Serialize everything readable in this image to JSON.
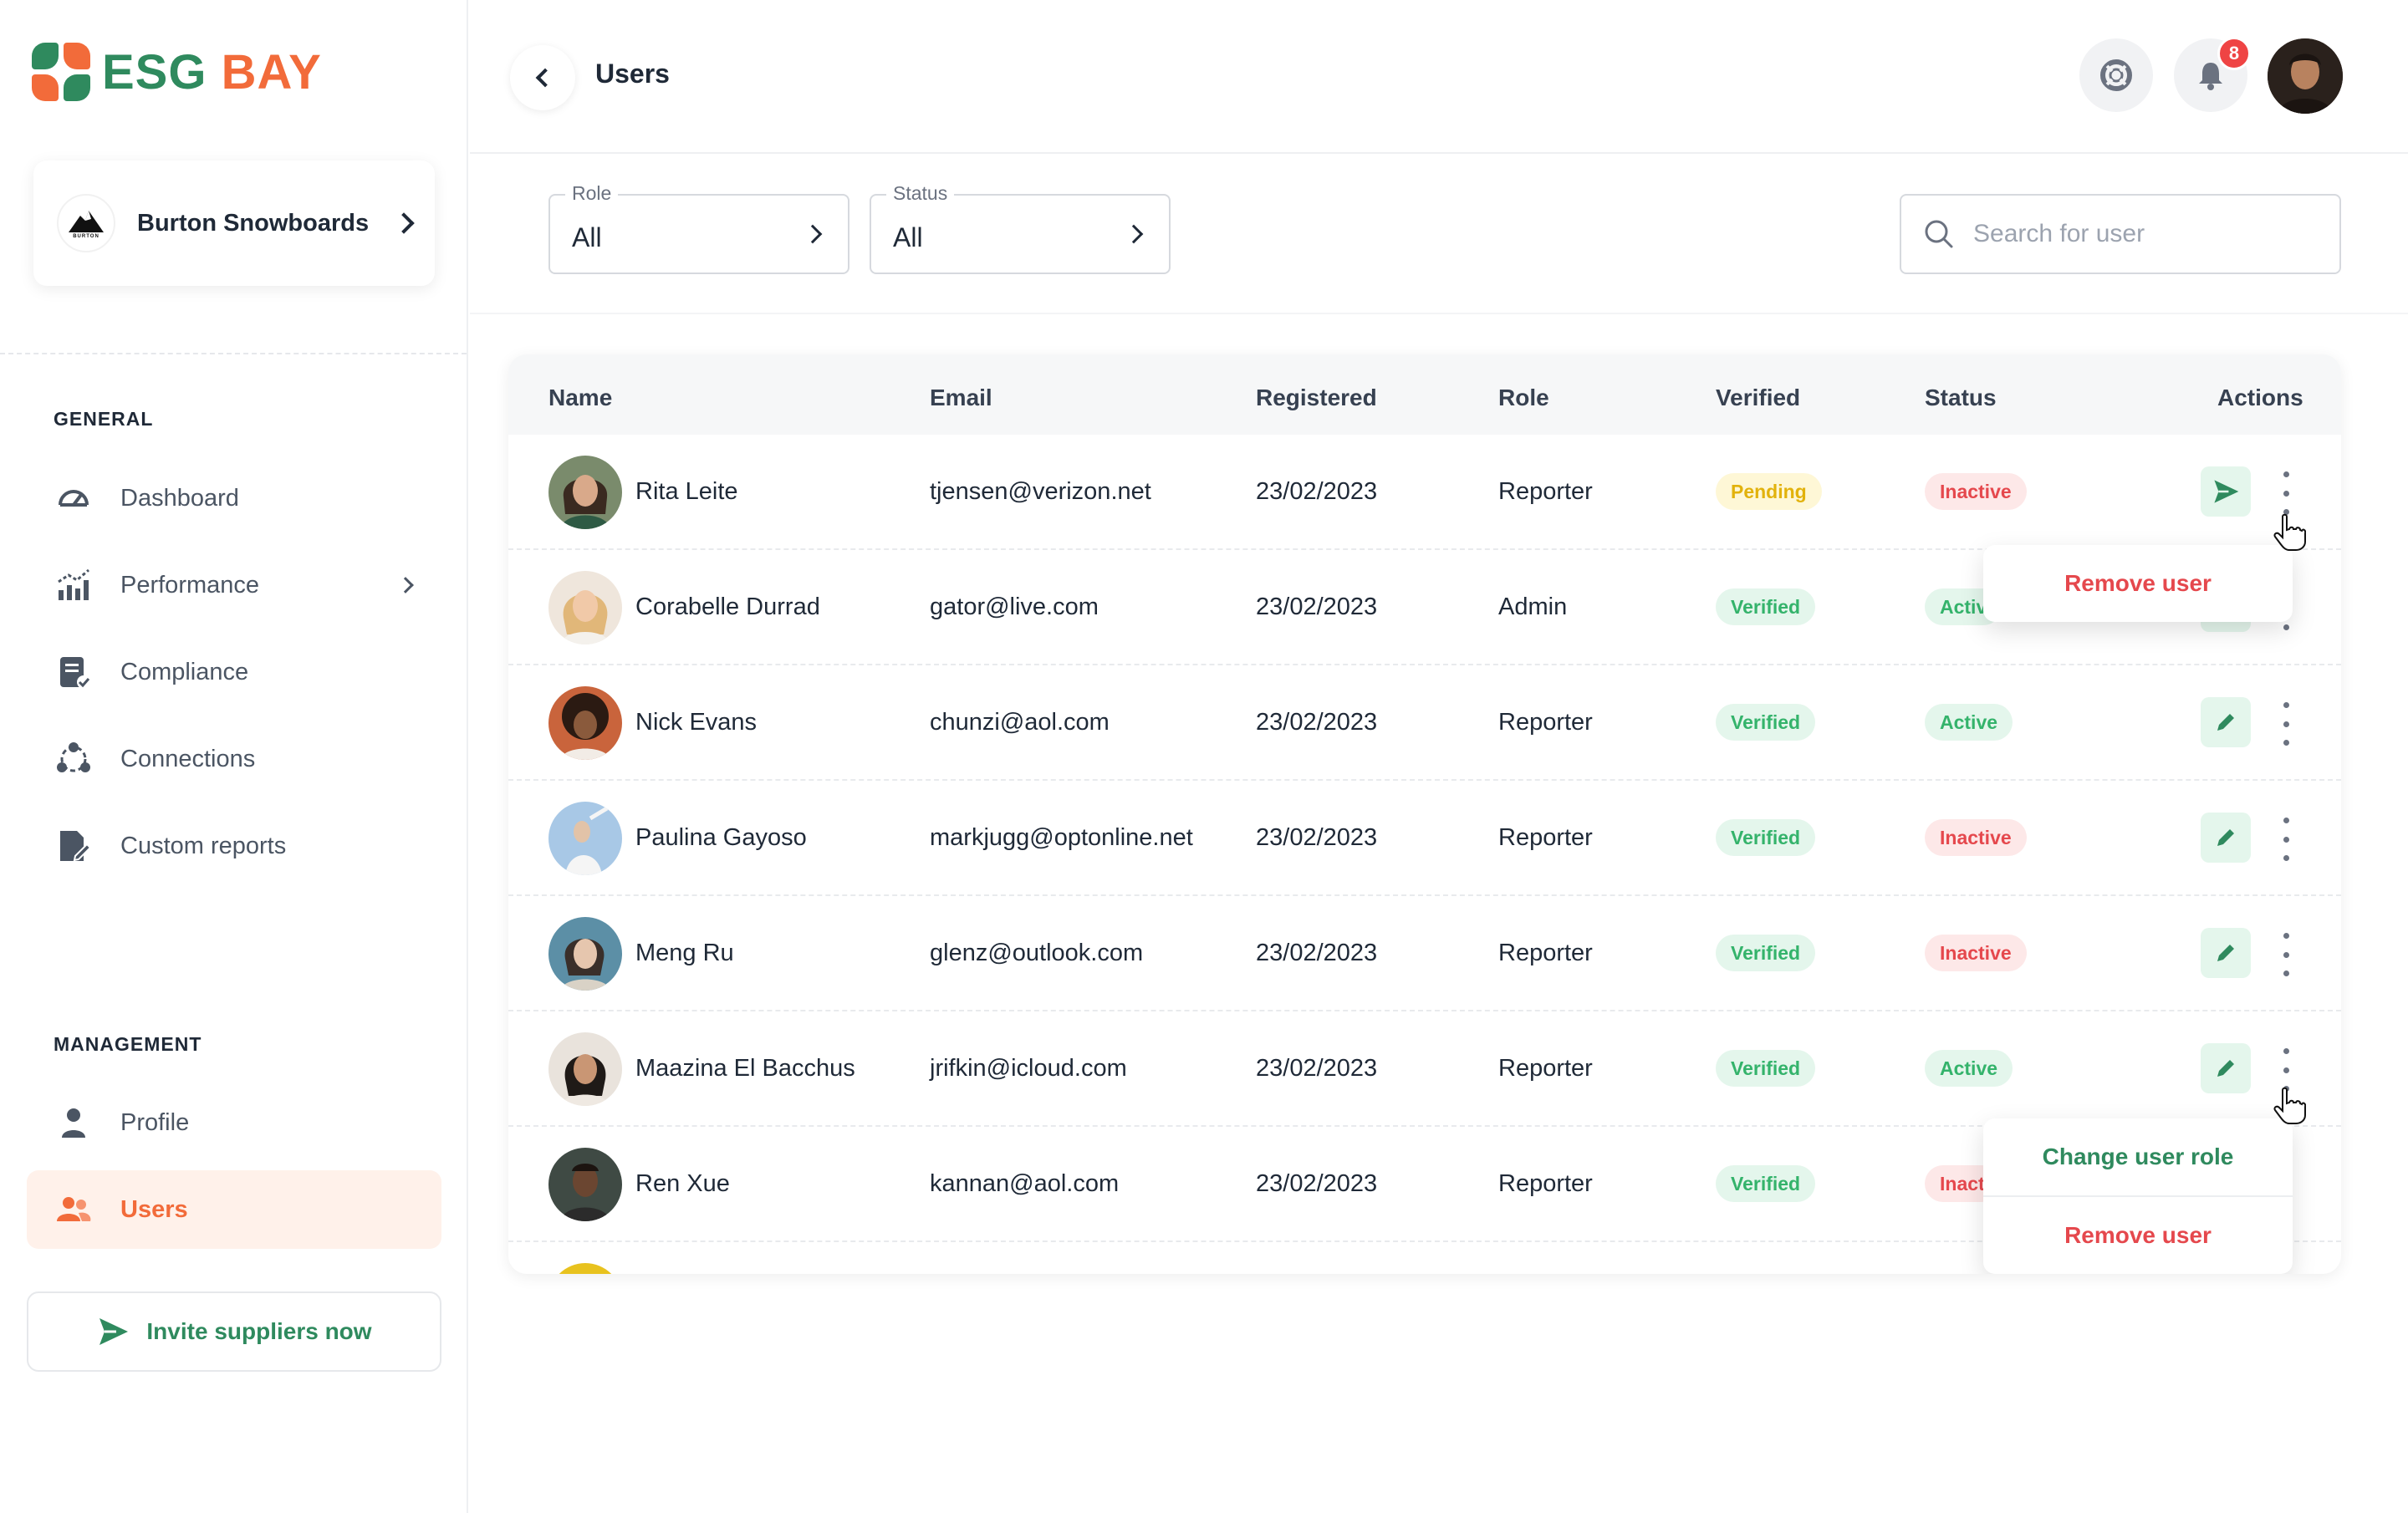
{
  "brand": {
    "name_part1": "ESG",
    "name_part2": "BAY"
  },
  "organization": {
    "name": "Burton Snowboards",
    "logo_text": "BURTON"
  },
  "sidebar": {
    "general_title": "GENERAL",
    "general_items": [
      {
        "label": "Dashboard",
        "icon": "gauge-icon"
      },
      {
        "label": "Performance",
        "icon": "bar-chart-icon"
      },
      {
        "label": "Compliance",
        "icon": "document-check-icon"
      },
      {
        "label": "Connections",
        "icon": "network-icon"
      },
      {
        "label": "Custom reports",
        "icon": "file-edit-icon"
      }
    ],
    "management_title": "MANAGEMENT",
    "management_items": [
      {
        "label": "Profile",
        "icon": "person-icon"
      },
      {
        "label": "Users",
        "icon": "users-icon",
        "active": true
      }
    ],
    "invite_label": "Invite suppliers now"
  },
  "header": {
    "title": "Users",
    "notification_count": "8"
  },
  "filters": {
    "role": {
      "label": "Role",
      "value": "All"
    },
    "status": {
      "label": "Status",
      "value": "All"
    },
    "search_placeholder": "Search for user"
  },
  "table": {
    "columns": [
      "Name",
      "Email",
      "Registered",
      "Role",
      "Verified",
      "Status",
      "Actions"
    ],
    "rows": [
      {
        "name": "Rita Leite",
        "email": "tjensen@verizon.net",
        "registered": "23/02/2023",
        "role": "Reporter",
        "verified": "Pending",
        "status": "Inactive",
        "action": "send-icon"
      },
      {
        "name": "Corabelle Durrad",
        "email": "gator@live.com",
        "registered": "23/02/2023",
        "role": "Admin",
        "verified": "Verified",
        "status": "Activ",
        "action": "edit-icon"
      },
      {
        "name": "Nick Evans",
        "email": "chunzi@aol.com",
        "registered": "23/02/2023",
        "role": "Reporter",
        "verified": "Verified",
        "status": "Active",
        "action": "edit-icon"
      },
      {
        "name": "Paulina Gayoso",
        "email": "markjugg@optonline.net",
        "registered": "23/02/2023",
        "role": "Reporter",
        "verified": "Verified",
        "status": "Inactive",
        "action": "edit-icon"
      },
      {
        "name": "Meng Ru",
        "email": "glenz@outlook.com",
        "registered": "23/02/2023",
        "role": "Reporter",
        "verified": "Verified",
        "status": "Inactive",
        "action": "edit-icon"
      },
      {
        "name": "Maazina El Bacchus",
        "email": "jrifkin@icloud.com",
        "registered": "23/02/2023",
        "role": "Reporter",
        "verified": "Verified",
        "status": "Active",
        "action": "edit-icon"
      },
      {
        "name": "Ren Xue",
        "email": "kannan@aol.com",
        "registered": "23/02/2023",
        "role": "Reporter",
        "verified": "Verified",
        "status": "Inact",
        "action": "edit-icon"
      }
    ]
  },
  "menus": {
    "menu1": {
      "remove": "Remove user"
    },
    "menu2": {
      "change_role": "Change user role",
      "remove": "Remove user"
    }
  },
  "colors": {
    "brand_green": "#2f8a5e",
    "brand_orange": "#f26b3a",
    "danger": "#e5484d",
    "success": "#34b36b",
    "warning": "#e2b20c"
  }
}
